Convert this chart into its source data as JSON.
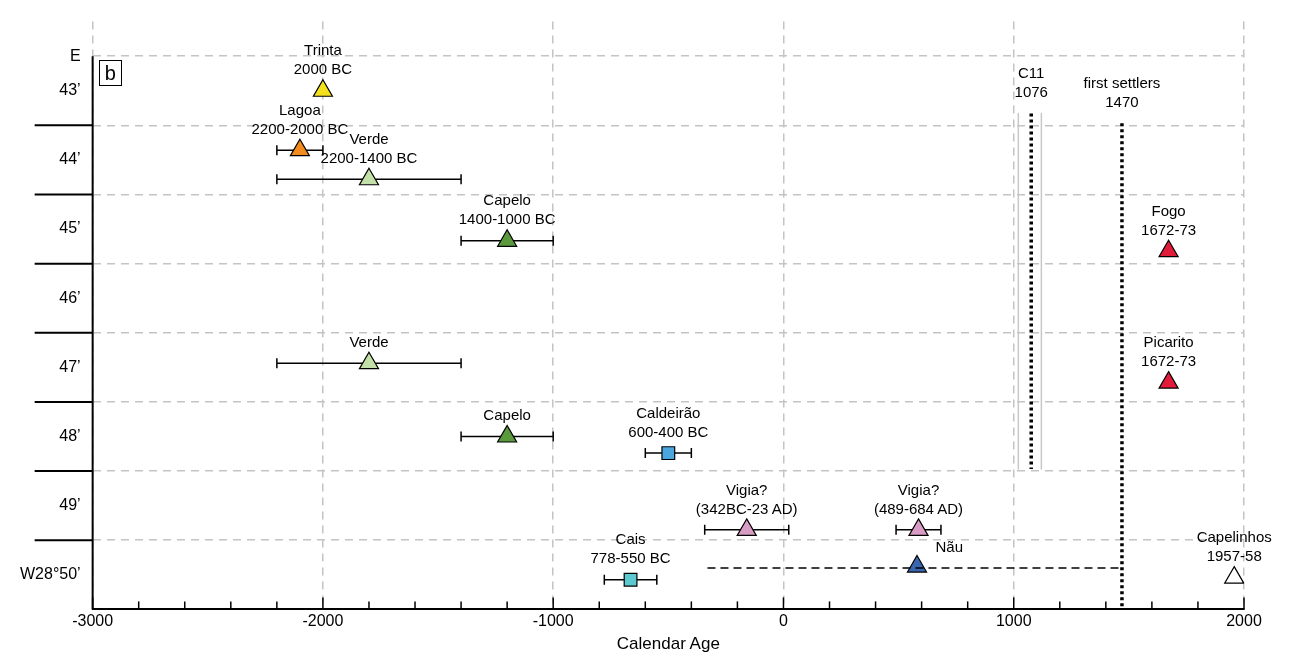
{
  "chart_data": {
    "type": "scatter",
    "xlabel": "Calendar Age",
    "xlim": [
      -3000,
      2000
    ],
    "xticks": [
      -3000,
      {
        "value": -2800,
        "label": null
      },
      {
        "value": -2600,
        "label": null
      },
      {
        "value": -2400,
        "label": null
      },
      {
        "value": -2200,
        "label": null
      },
      -2000,
      {
        "value": -1800,
        "label": null
      },
      {
        "value": -1600,
        "label": null
      },
      {
        "value": -1400,
        "label": null
      },
      {
        "value": -1200,
        "label": null
      },
      -1000,
      {
        "value": -800,
        "label": null
      },
      {
        "value": -600,
        "label": null
      },
      {
        "value": -400,
        "label": null
      },
      {
        "value": -200,
        "label": null
      },
      0,
      {
        "value": 200,
        "label": null
      },
      {
        "value": 400,
        "label": null
      },
      {
        "value": 600,
        "label": null
      },
      {
        "value": 800,
        "label": null
      },
      1000,
      {
        "value": 1200,
        "label": null
      },
      {
        "value": 1400,
        "label": null
      },
      {
        "value": 1600,
        "label": null
      },
      {
        "value": 1800,
        "label": null
      },
      2000
    ],
    "ylim": [
      50.5,
      42.0
    ],
    "yticks": [
      {
        "value": 42.5,
        "label": "E"
      },
      {
        "value": 43,
        "label": "43’"
      },
      {
        "value": 43.5,
        "label": null
      },
      {
        "value": 44,
        "label": "44’"
      },
      {
        "value": 44.5,
        "label": null
      },
      {
        "value": 45,
        "label": "45’"
      },
      {
        "value": 45.5,
        "label": null
      },
      {
        "value": 46,
        "label": "46’"
      },
      {
        "value": 46.5,
        "label": null
      },
      {
        "value": 47,
        "label": "47’"
      },
      {
        "value": 47.5,
        "label": null
      },
      {
        "value": 48,
        "label": "48’"
      },
      {
        "value": 48.5,
        "label": null
      },
      {
        "value": 49,
        "label": "49’"
      },
      {
        "value": 49.5,
        "label": null
      },
      {
        "value": 50,
        "label": "W28°50’"
      }
    ],
    "grid": true,
    "legend": false,
    "series": [
      {
        "marker": "triangle",
        "color": "#f5e11b",
        "x": [
          -2000
        ],
        "values": [
          43.0
        ]
      },
      {
        "marker": "triangle",
        "color": "#f28a1e",
        "x": [
          -2100
        ],
        "values": [
          43.86
        ],
        "xerrors": [
          [
            -2200,
            -2000
          ]
        ]
      },
      {
        "marker": "triangle",
        "color": "#c3e0a8",
        "x": [
          -1800,
          -1800
        ],
        "values": [
          44.28,
          46.94
        ],
        "xerrors": [
          [
            -2200,
            -1400
          ],
          [
            -2200,
            -1400
          ]
        ]
      },
      {
        "marker": "triangle",
        "color": "#5a9a3c",
        "x": [
          -1200,
          -1200
        ],
        "values": [
          45.17,
          48.0
        ],
        "xerrors": [
          [
            -1400,
            -1000
          ],
          [
            -1400,
            -1000
          ]
        ]
      },
      {
        "marker": "square",
        "color": "#4aa6dc",
        "x": [
          -500
        ],
        "values": [
          48.24
        ],
        "xerrors": [
          [
            -600,
            -400
          ]
        ]
      },
      {
        "marker": "triangle",
        "color": "#d99cc4",
        "x": [
          -159.5,
          586.5
        ],
        "values": [
          49.35,
          49.35
        ],
        "xerrors": [
          [
            -342,
            23
          ],
          [
            489,
            684
          ]
        ]
      },
      {
        "type": "line",
        "line_style": "dashed",
        "color": "#000000",
        "x": [
          -330,
          1470
        ],
        "values": [
          49.9,
          49.9
        ]
      },
      {
        "marker": "triangle",
        "color": "#3a66b0",
        "x": [
          580
        ],
        "values": [
          49.88
        ]
      },
      {
        "marker": "square",
        "color": "#5cc8d0",
        "x": [
          -664
        ],
        "values": [
          50.07
        ],
        "xerrors": [
          [
            -778,
            -550
          ]
        ]
      },
      {
        "marker": "triangle",
        "color": "#e31b3b",
        "x": [
          1672.5,
          1672.5
        ],
        "values": [
          45.32,
          47.22
        ]
      },
      {
        "marker": "triangle",
        "color": "#ffffff",
        "x": [
          1957.5
        ],
        "values": [
          50.04
        ]
      },
      {
        "type": "line",
        "line_style": "solid",
        "color": "#c8c8c8",
        "x": [
          1020,
          1020
        ],
        "values": [
          43.33,
          48.47
        ]
      },
      {
        "type": "line",
        "line_style": "solid",
        "color": "#c8c8c8",
        "x": [
          1120,
          1120
        ],
        "values": [
          43.33,
          48.47
        ]
      },
      {
        "type": "line",
        "line_style": "dotted",
        "color": "#000000",
        "x": [
          1076,
          1076
        ],
        "values": [
          43.33,
          48.47
        ]
      },
      {
        "type": "line",
        "line_style": "dotted",
        "color": "#000000",
        "x": [
          1470,
          1470
        ],
        "values": [
          43.47,
          50.5
        ]
      }
    ],
    "annotations": [
      "b",
      {
        "text": "Trinta",
        "x": -2000,
        "y": 43.0
      },
      {
        "text": "2000 BC",
        "x": -2000,
        "y": 43.0
      },
      {
        "text": "Lagoa",
        "x": -2100,
        "y": 43.86
      },
      {
        "text": "2200-2000 BC",
        "x": -2100,
        "y": 43.86
      },
      {
        "text": "Verde",
        "x": -1800,
        "y": 44.28
      },
      {
        "text": "2200-1400 BC",
        "x": -1800,
        "y": 44.28
      },
      {
        "text": "Capelo",
        "x": -1200,
        "y": 45.17
      },
      {
        "text": "1400-1000 BC",
        "x": -1200,
        "y": 45.17
      },
      {
        "text": "Verde",
        "x": -1800,
        "y": 46.94
      },
      {
        "text": "Capelo",
        "x": -1200,
        "y": 48.0
      },
      {
        "text": "Caldeirão",
        "x": -500,
        "y": 48.24
      },
      {
        "text": "600-400 BC",
        "x": -500,
        "y": 48.24
      },
      {
        "text": "Vigia?",
        "x": -159.5,
        "y": 49.35
      },
      {
        "text": "(342BC-23 AD)",
        "x": -159.5,
        "y": 49.35
      },
      {
        "text": "Vigia?",
        "x": 586.5,
        "y": 49.35
      },
      {
        "text": "(489-684 AD)",
        "x": 586.5,
        "y": 49.35
      },
      {
        "text": "Cais",
        "x": -664,
        "y": 50.07
      },
      {
        "text": "778-550 BC",
        "x": -664,
        "y": 50.07
      },
      {
        "text": "Nãu",
        "x": 720,
        "y": 49.9
      },
      {
        "text": "Capelinhos",
        "x": 1957.5,
        "y": 50.04
      },
      {
        "text": "1957-58",
        "x": 1957.5,
        "y": 50.04
      },
      {
        "text": "Fogo",
        "x": 1672.5,
        "y": 45.32
      },
      {
        "text": "1672-73",
        "x": 1672.5,
        "y": 45.32
      },
      {
        "text": "Picarito",
        "x": 1672.5,
        "y": 47.22
      },
      {
        "text": "1672-73",
        "x": 1672.5,
        "y": 47.22
      },
      {
        "text": "C11",
        "x": 1076,
        "y": 43.33
      },
      {
        "text": "1076",
        "x": 1076,
        "y": 43.33
      },
      {
        "text": "first settlers",
        "x": 1470,
        "y": 43.47
      },
      {
        "text": "1470",
        "x": 1470,
        "y": 43.47
      }
    ]
  }
}
